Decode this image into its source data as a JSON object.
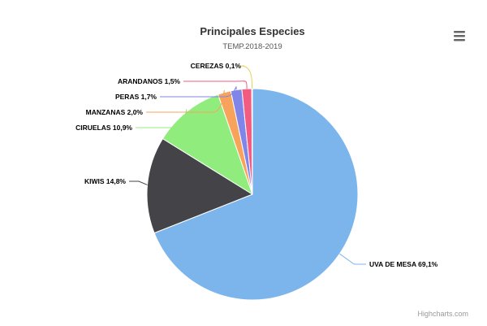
{
  "chart_data": {
    "type": "pie",
    "title": "Principales Especies",
    "subtitle": "TEMP.2018-2019",
    "slices": [
      {
        "name": "UVA DE MESA",
        "value": 69.1,
        "label": "UVA DE MESA 69,1%",
        "color": "#7cb5ec"
      },
      {
        "name": "KIWIS",
        "value": 14.8,
        "label": "KIWIS 14,8%",
        "color": "#434348"
      },
      {
        "name": "CIRUELAS",
        "value": 10.9,
        "label": "CIRUELAS 10,9%",
        "color": "#90ed7d"
      },
      {
        "name": "MANZANAS",
        "value": 2.0,
        "label": "MANZANAS 2,0%",
        "color": "#f7a35c"
      },
      {
        "name": "PERAS",
        "value": 1.7,
        "label": "PERAS 1,7%",
        "color": "#8085e9"
      },
      {
        "name": "ARANDANOS",
        "value": 1.5,
        "label": "ARANDANOS 1,5%",
        "color": "#f15c80"
      },
      {
        "name": "CEREZAS",
        "value": 0.1,
        "label": "CEREZAS 0,1%",
        "color": "#e4d354"
      }
    ]
  },
  "credits": "Highcharts.com",
  "icons": {
    "menu": "hamburger-menu-icon"
  }
}
